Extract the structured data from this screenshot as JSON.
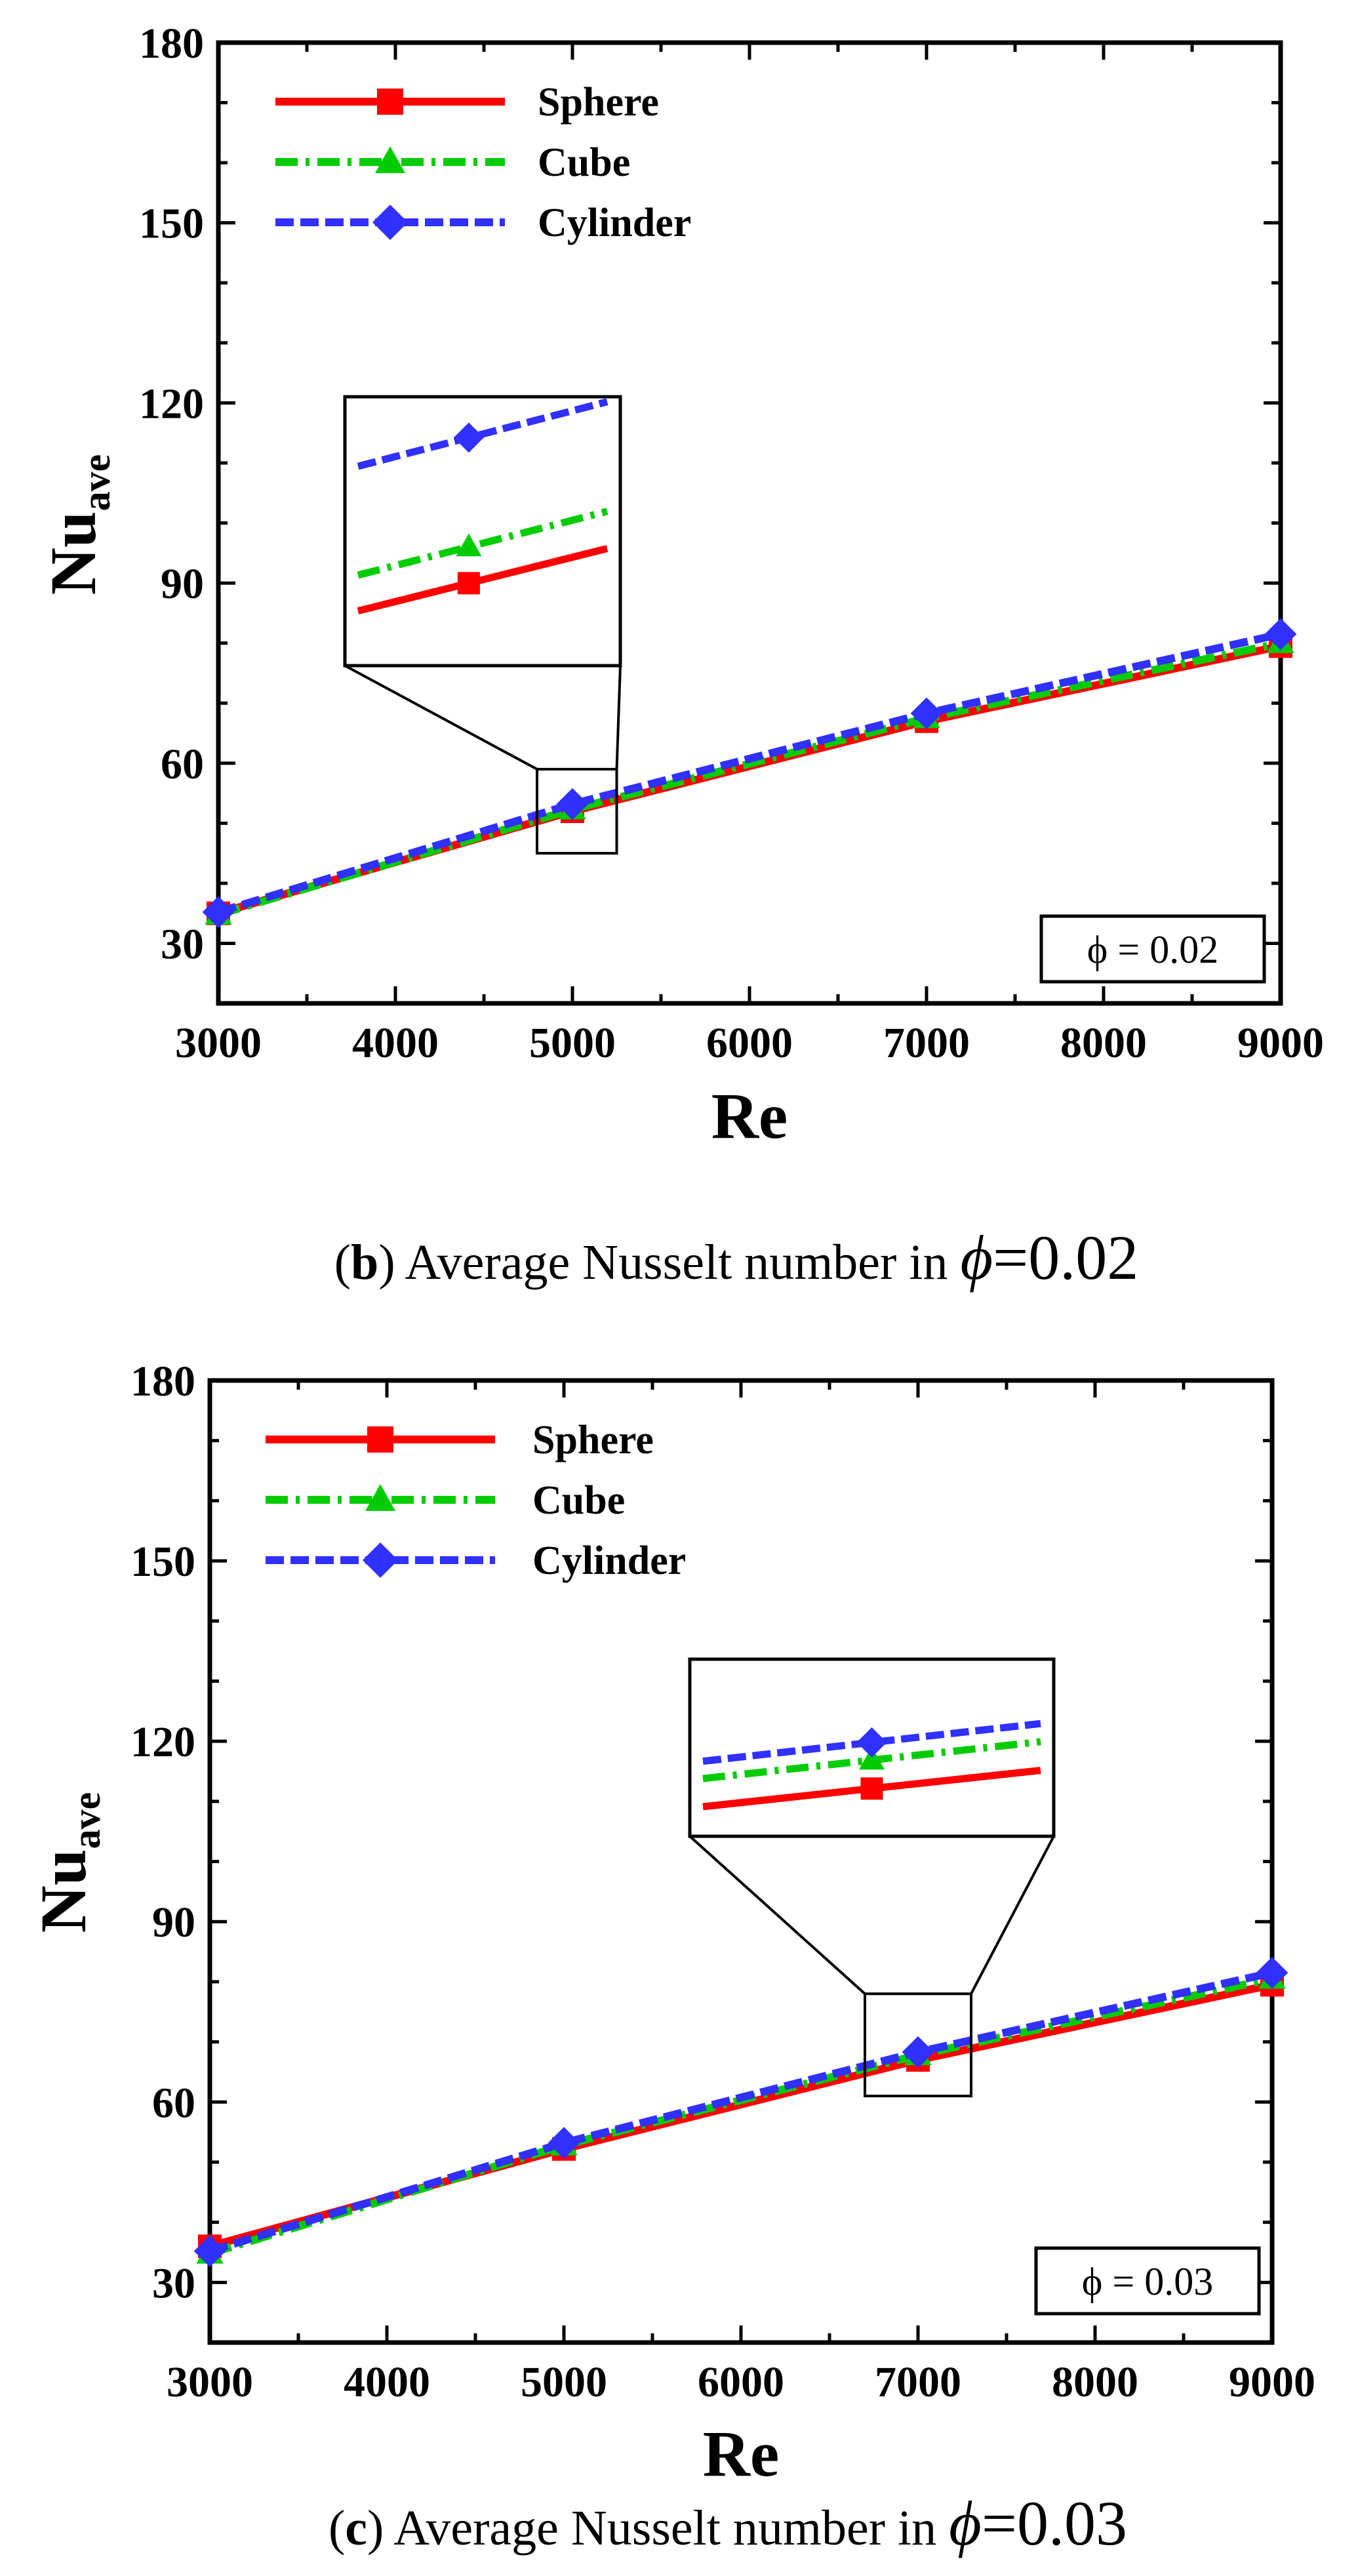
{
  "chart_data": [
    {
      "type": "line",
      "panel": "b",
      "xlabel": "Re",
      "ylabel": "Nu",
      "ylabel_sub": "ave",
      "xlim": [
        3000,
        9000
      ],
      "ylim": [
        20,
        180
      ],
      "xticks": [
        3000,
        4000,
        5000,
        6000,
        7000,
        8000,
        9000
      ],
      "yticks": [
        30,
        60,
        90,
        120,
        150,
        180
      ],
      "x": [
        3000,
        5000,
        7000,
        9000
      ],
      "series": [
        {
          "name": "Sphere",
          "values": [
            35,
            52,
            67,
            79.5
          ],
          "color": "#ff0000",
          "marker": "square",
          "dash": "solid"
        },
        {
          "name": "Cube",
          "values": [
            34.8,
            52.3,
            67.5,
            80
          ],
          "color": "#00cc00",
          "marker": "triangle",
          "dash": "dashdot"
        },
        {
          "name": "Cylinder",
          "values": [
            35.2,
            53.2,
            68.3,
            81.5
          ],
          "color": "#3030ff",
          "marker": "diamond",
          "dash": "dash"
        }
      ],
      "annotation": "ϕ = 0.02",
      "legend_position": "top-left",
      "inset": {
        "x_range": [
          4800,
          5250
        ],
        "y_range": [
          45,
          59
        ]
      },
      "caption": {
        "letter": "b",
        "text": " Average Nusselt number in ",
        "phi": "ϕ",
        "value": "=0.02"
      }
    },
    {
      "type": "line",
      "panel": "c",
      "xlabel": "Re",
      "ylabel": "Nu",
      "ylabel_sub": "ave",
      "xlim": [
        3000,
        9000
      ],
      "ylim": [
        20,
        180
      ],
      "xticks": [
        3000,
        4000,
        5000,
        6000,
        7000,
        8000,
        9000
      ],
      "yticks": [
        30,
        60,
        90,
        120,
        150,
        180
      ],
      "x": [
        3000,
        5000,
        7000,
        9000
      ],
      "series": [
        {
          "name": "Sphere",
          "values": [
            36,
            52.2,
            67,
            79.5
          ],
          "color": "#ff0000",
          "marker": "square",
          "dash": "solid"
        },
        {
          "name": "Cube",
          "values": [
            34.8,
            52.8,
            67.8,
            80.5
          ],
          "color": "#00cc00",
          "marker": "triangle",
          "dash": "dashdot"
        },
        {
          "name": "Cylinder",
          "values": [
            35.2,
            53.2,
            68.3,
            81.5
          ],
          "color": "#3030ff",
          "marker": "diamond",
          "dash": "dash"
        }
      ],
      "annotation": "ϕ = 0.03",
      "legend_position": "top-left",
      "inset": {
        "x_range": [
          6700,
          7300
        ],
        "y_range": [
          61,
          78
        ]
      },
      "caption": {
        "letter": "c",
        "text": " Average Nusselt number in ",
        "phi": "ϕ",
        "value": "=0.03"
      }
    }
  ]
}
